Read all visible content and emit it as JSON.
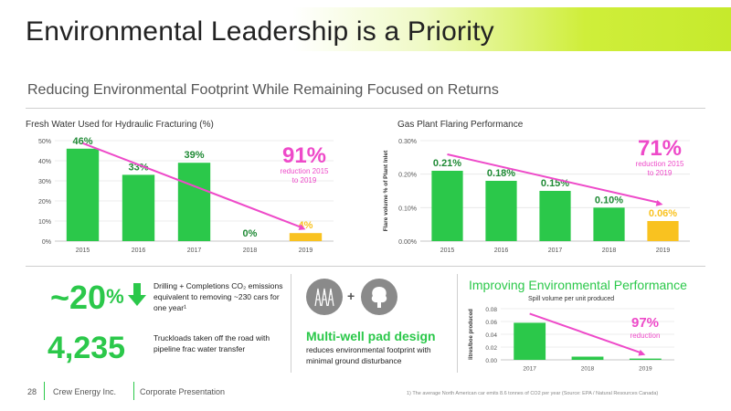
{
  "page": {
    "title": "Environmental Leadership is a Priority",
    "subtitle": "Reducing Environmental Footprint While Remaining Focused on Returns"
  },
  "colors": {
    "green": "#2bc84a",
    "yellow": "#f9c220",
    "magenta": "#ee4ac9",
    "dark_green": "#1f8a35"
  },
  "chart_data": [
    {
      "type": "bar",
      "title": "Fresh Water Used for Hydraulic Fracturing (%)",
      "categories": [
        "2015",
        "2016",
        "2017",
        "2018",
        "2019"
      ],
      "values": [
        46,
        33,
        39,
        0,
        4
      ],
      "labels": [
        "46%",
        "33%",
        "39%",
        "0%",
        "4%"
      ],
      "ylim": [
        0,
        50
      ],
      "yticks": [
        "0%",
        "10%",
        "20%",
        "30%",
        "40%",
        "50%"
      ],
      "callout": {
        "value": "91%",
        "text": "reduction 2015 to 2019"
      }
    },
    {
      "type": "bar",
      "title": "Gas Plant Flaring Performance",
      "ylabel": "Flare volume % of Plant Inlet",
      "categories": [
        "2015",
        "2016",
        "2017",
        "2018",
        "2019"
      ],
      "values": [
        0.21,
        0.18,
        0.15,
        0.1,
        0.06
      ],
      "labels": [
        "0.21%",
        "0.18%",
        "0.15%",
        "0.10%",
        "0.06%"
      ],
      "ylim": [
        0,
        0.3
      ],
      "yticks": [
        "0.00%",
        "0.10%",
        "0.20%",
        "0.30%"
      ],
      "callout": {
        "value": "71%",
        "text": "reduction 2015 to 2019"
      }
    },
    {
      "type": "bar",
      "title": "Improving Environmental Performance",
      "subtitle": "Spill volume per unit produced",
      "ylabel": "litres/boe produced",
      "categories": [
        "2017",
        "2018",
        "2019"
      ],
      "values": [
        0.058,
        0.005,
        0.002
      ],
      "ylim": [
        0,
        0.08
      ],
      "yticks": [
        "0.00",
        "0.02",
        "0.04",
        "0.06",
        "0.08"
      ],
      "callout": {
        "value": "97%",
        "text": "reduction"
      }
    }
  ],
  "stats": {
    "emissions": {
      "value": "~20",
      "unit": "%",
      "text": "Drilling + Completions CO₂ emissions equivalent to removing ~230 cars for one year¹"
    },
    "truckloads": {
      "value": "4,235",
      "text": "Truckloads taken off the road with pipeline frac water transfer"
    }
  },
  "multiwell": {
    "plus": "+",
    "title": "Multi-well pad design",
    "text": "reduces environmental footprint with minimal ground disturbance"
  },
  "footer": {
    "page_number": "28",
    "company": "Crew Energy Inc.",
    "doc": "Corporate Presentation",
    "footnote": "1)      The average North American car emits 8.6 tonnes of CO2 per year (Source: EPA / Natural Resources Canada)"
  }
}
